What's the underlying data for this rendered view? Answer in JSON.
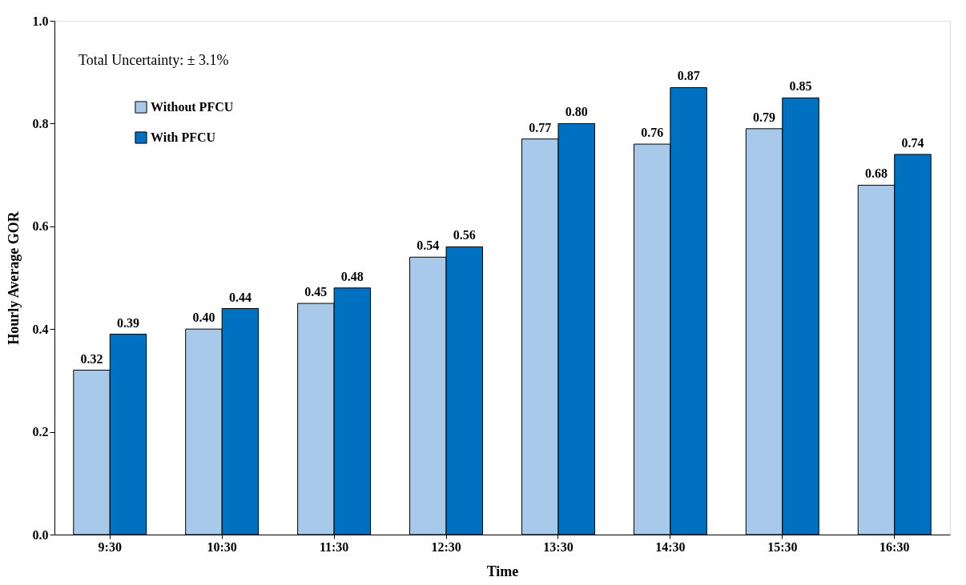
{
  "chart_data": {
    "type": "bar",
    "xlabel": "Time",
    "ylabel": "Hourly Average GOR",
    "categories": [
      "9:30",
      "10:30",
      "11:30",
      "12:30",
      "13:30",
      "14:30",
      "15:30",
      "16:30"
    ],
    "series": [
      {
        "name": "Without PFCU",
        "color": "#a9c9ea",
        "values": [
          0.32,
          0.4,
          0.45,
          0.54,
          0.77,
          0.76,
          0.79,
          0.68
        ],
        "value_labels": [
          "0.32",
          "0.40",
          "0.45",
          "0.54",
          "0.77",
          "0.76",
          "0.79",
          "0.68"
        ]
      },
      {
        "name": "With PFCU",
        "color": "#0070c0",
        "values": [
          0.39,
          0.44,
          0.48,
          0.56,
          0.8,
          0.87,
          0.85,
          0.74
        ],
        "value_labels": [
          "0.39",
          "0.44",
          "0.48",
          "0.56",
          "0.80",
          "0.87",
          "0.85",
          "0.74"
        ]
      }
    ],
    "ylim": [
      0,
      1
    ],
    "yticks": [
      {
        "value": 0,
        "label": "0.0"
      },
      {
        "value": 0.2,
        "label": "0.2"
      },
      {
        "value": 0.4,
        "label": "0.4"
      },
      {
        "value": 0.6,
        "label": "0.6"
      },
      {
        "value": 0.8,
        "label": "0.8"
      },
      {
        "value": 1,
        "label": "1.0"
      }
    ],
    "annotations": [
      "Total Uncertainty: ± 3.1%"
    ],
    "grid": false,
    "legend": "top left"
  }
}
